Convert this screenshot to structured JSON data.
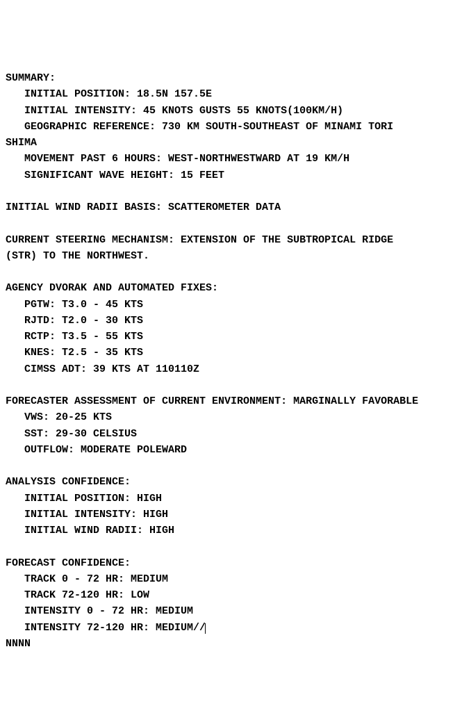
{
  "summary": {
    "header": "SUMMARY:",
    "initial_position": "   INITIAL POSITION: 18.5N 157.5E",
    "initial_intensity": "   INITIAL INTENSITY: 45 KNOTS GUSTS 55 KNOTS(100KM/H)",
    "geo_ref_line1": "   GEOGRAPHIC REFERENCE: 730 KM SOUTH-SOUTHEAST OF MINAMI TORI",
    "geo_ref_line2": "SHIMA",
    "movement": "   MOVEMENT PAST 6 HOURS: WEST-NORTHWESTWARD AT 19 KM/H",
    "wave_height": "   SIGNIFICANT WAVE HEIGHT: 15 FEET"
  },
  "wind_radii_basis": "INITIAL WIND RADII BASIS: SCATTEROMETER DATA",
  "steering_line1": "CURRENT STEERING MECHANISM: EXTENSION OF THE SUBTROPICAL RIDGE",
  "steering_line2": "(STR) TO THE NORTHWEST.",
  "dvorak": {
    "header": "AGENCY DVORAK AND AUTOMATED FIXES:",
    "pgtw": "   PGTW: T3.0 - 45 KTS",
    "rjtd": "   RJTD: T2.0 - 30 KTS",
    "rctp": "   RCTP: T3.5 - 55 KTS",
    "knes": "   KNES: T2.5 - 35 KTS",
    "cimss": "   CIMSS ADT: 39 KTS AT 110110Z"
  },
  "environment": {
    "header": "FORECASTER ASSESSMENT OF CURRENT ENVIRONMENT: MARGINALLY FAVORABLE",
    "vws": "   VWS: 20-25 KTS",
    "sst": "   SST: 29-30 CELSIUS",
    "outflow": "   OUTFLOW: MODERATE POLEWARD"
  },
  "analysis_conf": {
    "header": "ANALYSIS CONFIDENCE:",
    "position": "   INITIAL POSITION: HIGH",
    "intensity": "   INITIAL INTENSITY: HIGH",
    "wind_radii": "   INITIAL WIND RADII: HIGH"
  },
  "forecast_conf": {
    "header": "FORECAST CONFIDENCE:",
    "track_0_72": "   TRACK 0 - 72 HR: MEDIUM",
    "track_72_120": "   TRACK 72-120 HR: LOW",
    "intensity_0_72": "   INTENSITY 0 - 72 HR: MEDIUM",
    "intensity_72_120": "   INTENSITY 72-120 HR: MEDIUM//"
  },
  "terminator": "NNNN"
}
